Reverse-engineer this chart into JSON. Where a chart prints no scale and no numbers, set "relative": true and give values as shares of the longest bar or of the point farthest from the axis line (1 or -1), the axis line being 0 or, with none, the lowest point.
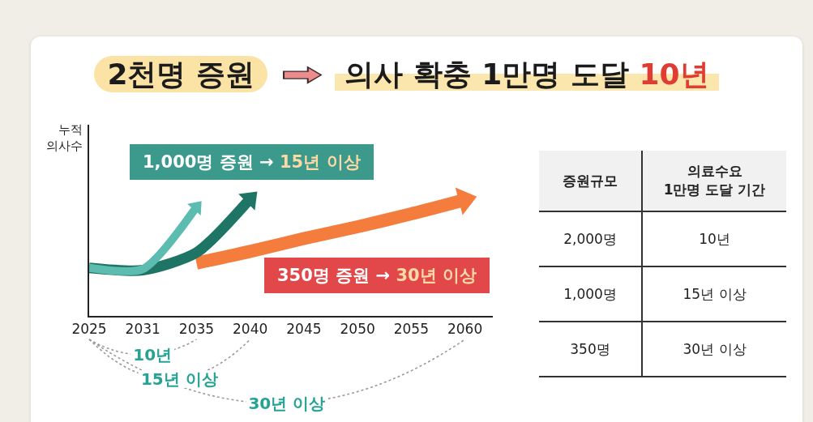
{
  "chart_data": [
    {
      "type": "line",
      "title": "2천명 증원 ➡ 의사 확충 1만명 도달 10년",
      "ylabel": "누적\n의사수",
      "categories": [
        "2025",
        "2031",
        "2035",
        "2040",
        "2045",
        "2050",
        "2055",
        "2060"
      ],
      "relative": true,
      "series": [
        {
          "color": "#5cbcb0",
          "values": [
            0.41,
            0.4,
            0.93,
            null,
            null,
            null,
            null,
            null
          ]
        },
        {
          "color": "#1f7565",
          "values": [
            0.41,
            0.39,
            0.54,
            1.0,
            null,
            null,
            null,
            null
          ]
        },
        {
          "color": "#f47c3c",
          "values": [
            null,
            null,
            0.45,
            0.55,
            0.66,
            0.76,
            0.87,
            0.99
          ]
        }
      ],
      "annotations": [
        "1,000명 증원 → 15년 이상",
        "350명 증원 → 30년 이상",
        "10년",
        "15년 이상",
        "30년 이상"
      ]
    },
    {
      "type": "other",
      "annotations": [
        "증원규모",
        "의료수요\n1만명 도달 기간",
        "2,000명",
        "10년",
        "1,000명",
        "15년 이상",
        "350명",
        "30년 이상"
      ]
    }
  ]
}
